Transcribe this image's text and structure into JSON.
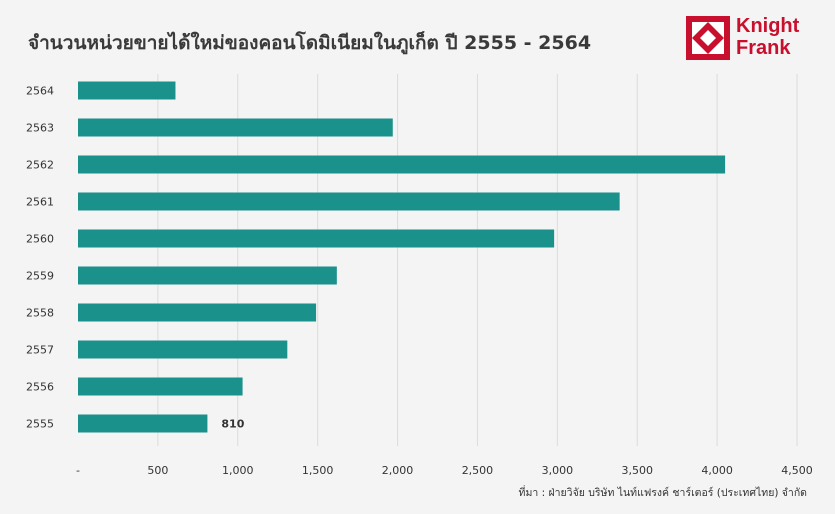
{
  "title": "จำนวนหน่วยขายได้ใหม่ของคอนโดมิเนียมในภูเก็ต ปี 2555 - 2564",
  "logo": {
    "line1": "Knight",
    "line2": "Frank",
    "color": "#c8102e"
  },
  "source": "ที่มา : ฝ่ายวิจัย บริษัท ไนท์แฟรงค์ ชาร์เตอร์ (ประเทศไทย) จำกัด",
  "chart_data": {
    "type": "bar",
    "orientation": "horizontal",
    "categories": [
      "2564",
      "2563",
      "2562",
      "2561",
      "2560",
      "2559",
      "2558",
      "2557",
      "2556",
      "2555"
    ],
    "values": [
      610,
      1970,
      4050,
      3390,
      2980,
      1620,
      1490,
      1310,
      1030,
      810
    ],
    "data_labels": [
      {
        "category": "2555",
        "label": "810"
      }
    ],
    "xlim": [
      0,
      4500
    ],
    "x_ticks": [
      "-",
      "500",
      "1,000",
      "1,500",
      "2,000",
      "2,500",
      "3,000",
      "3,500",
      "4,000",
      "4,500"
    ],
    "bar_color": "#1b918c",
    "grid": "vertical",
    "legend": "none"
  }
}
